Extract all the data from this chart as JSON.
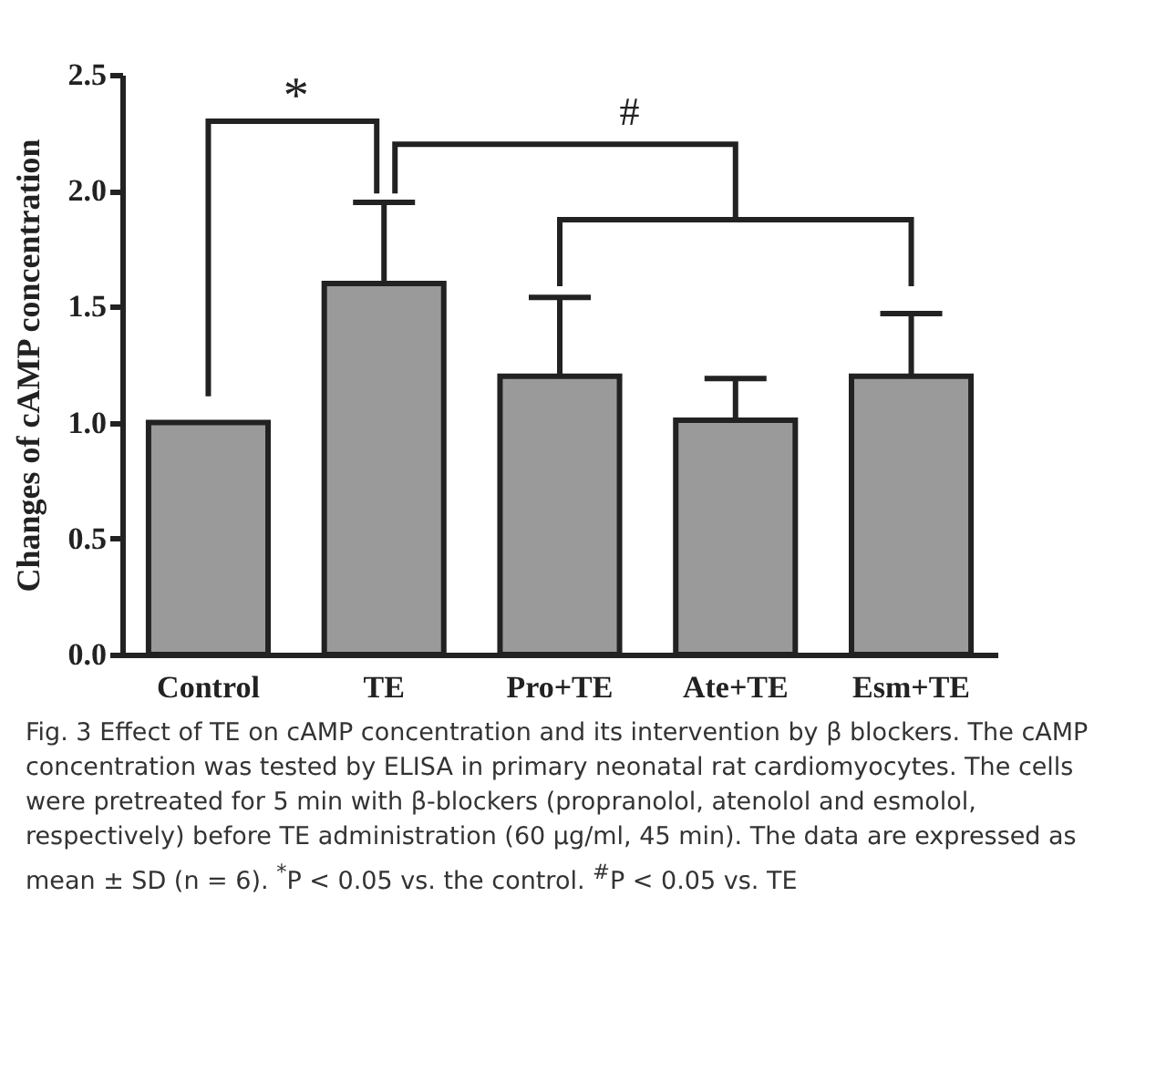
{
  "chart_data": {
    "type": "bar",
    "ylabel": "Changes of cAMP concentration",
    "categories": [
      "Control",
      "TE",
      "Pro+TE",
      "Ate+TE",
      "Esm+TE"
    ],
    "values": [
      1.0,
      1.6,
      1.2,
      1.01,
      1.2
    ],
    "errors": [
      null,
      [
        1.6,
        1.95
      ],
      [
        1.2,
        1.54
      ],
      [
        1.01,
        1.19
      ],
      [
        1.2,
        1.47
      ]
    ],
    "color": "#9a9a9a",
    "ylim": [
      0,
      2.5
    ],
    "yticks": [
      {
        "value": 0,
        "label": "0.0"
      },
      {
        "value": 0.5,
        "label": "0.5"
      },
      {
        "value": 1,
        "label": "1.0"
      },
      {
        "value": 1.5,
        "label": "1.5"
      },
      {
        "value": 2,
        "label": "2.0"
      },
      {
        "value": 2.5,
        "label": "2.5"
      }
    ],
    "grid": false,
    "annotations": [
      "*",
      "#",
      "Fig. 3 Effect of TE on cAMP concentration and its intervention by β blockers. The cAMP concentration was tested by ELISA in primary neonatal rat cardiomyocytes. The cells were pretreated for 5 min with β-blockers (propranolol, atenolol and esmolol, respectively) before TE administration (60 μg/ml, 45 min). The data are expressed as mean ± SD (n = 6). $^{*}$P < 0.05 vs. the control. $^{#}$P < 0.05 vs. TE"
    ]
  }
}
